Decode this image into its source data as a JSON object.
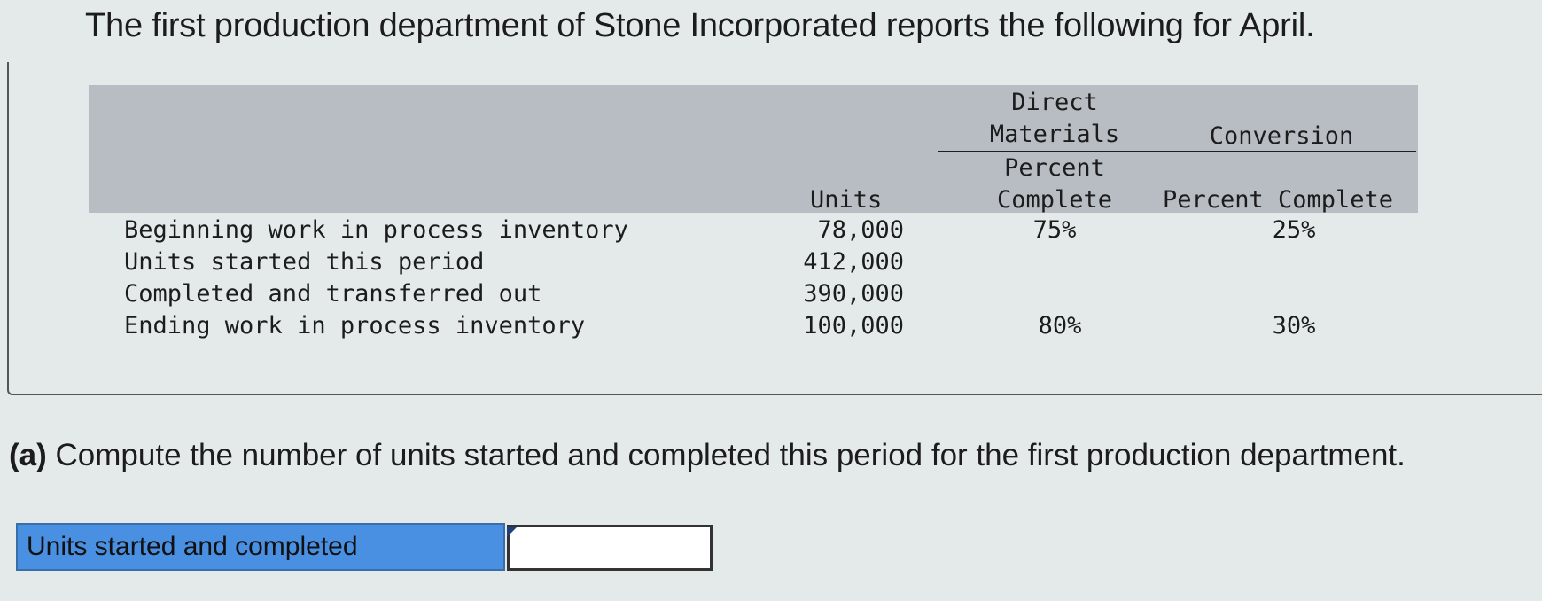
{
  "intro": "The first production department of Stone Incorporated reports the following for April.",
  "table": {
    "headers": {
      "dm_title_line1": "Direct",
      "dm_title_line2": "Materials",
      "conv_title": "Conversion",
      "units": "Units",
      "dm_sub_line1": "Percent",
      "dm_sub_line2": "Complete",
      "conv_sub": "Percent Complete"
    },
    "rows": [
      {
        "label": "Beginning work in process inventory",
        "units": "78,000",
        "dm": "75%",
        "conv": "25%"
      },
      {
        "label": "Units started this period",
        "units": "412,000",
        "dm": "",
        "conv": ""
      },
      {
        "label": "Completed and transferred out",
        "units": "390,000",
        "dm": "",
        "conv": ""
      },
      {
        "label": "Ending work in process inventory",
        "units": "100,000",
        "dm": "80%",
        "conv": "30%"
      }
    ]
  },
  "question": {
    "marker": "(a)",
    "text": "Compute the number of units started and completed this period for the first production department."
  },
  "answer": {
    "label": "Units started and completed",
    "value": ""
  }
}
